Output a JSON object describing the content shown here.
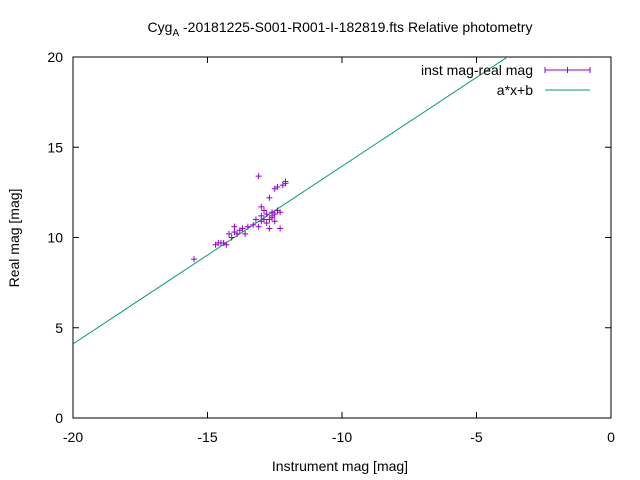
{
  "chart_data": {
    "type": "scatter",
    "title_main": "Cyg",
    "title_sub": "A",
    "title_rest": " -20181225-S001-R001-I-182819.fts Relative photometry",
    "xlabel": "Instrument mag [mag]",
    "ylabel": "Real mag [mag]",
    "xlim": [
      -20,
      0
    ],
    "ylim": [
      0,
      20
    ],
    "x_ticks": [
      -20,
      -15,
      -10,
      -5,
      0
    ],
    "y_ticks": [
      0,
      5,
      10,
      15,
      20
    ],
    "grid": false,
    "legend_position": "top-right",
    "series": [
      {
        "name": "inst mag-real mag",
        "kind": "points",
        "color": "#9400d3",
        "points": [
          [
            -15.5,
            8.8
          ],
          [
            -14.7,
            9.6
          ],
          [
            -14.6,
            9.7
          ],
          [
            -14.5,
            9.7
          ],
          [
            -14.4,
            9.7
          ],
          [
            -14.3,
            9.6
          ],
          [
            -14.2,
            10.2
          ],
          [
            -14.1,
            10.0
          ],
          [
            -14.0,
            10.3
          ],
          [
            -14.0,
            10.6
          ],
          [
            -13.9,
            10.2
          ],
          [
            -13.8,
            10.4
          ],
          [
            -13.7,
            10.5
          ],
          [
            -13.6,
            10.2
          ],
          [
            -13.5,
            10.6
          ],
          [
            -13.3,
            10.7
          ],
          [
            -13.2,
            11.0
          ],
          [
            -13.1,
            13.4
          ],
          [
            -13.1,
            10.6
          ],
          [
            -13.0,
            11.2
          ],
          [
            -13.0,
            11.7
          ],
          [
            -13.0,
            10.9
          ],
          [
            -12.9,
            11.0
          ],
          [
            -12.9,
            11.5
          ],
          [
            -12.8,
            10.8
          ],
          [
            -12.8,
            11.3
          ],
          [
            -12.7,
            11.0
          ],
          [
            -12.7,
            12.2
          ],
          [
            -12.7,
            10.5
          ],
          [
            -12.6,
            11.1
          ],
          [
            -12.6,
            11.4
          ],
          [
            -12.6,
            11.2
          ],
          [
            -12.5,
            11.3
          ],
          [
            -12.5,
            10.9
          ],
          [
            -12.5,
            12.7
          ],
          [
            -12.4,
            11.5
          ],
          [
            -12.4,
            12.8
          ],
          [
            -12.3,
            11.4
          ],
          [
            -12.3,
            10.5
          ],
          [
            -12.2,
            12.9
          ],
          [
            -12.1,
            13.0
          ],
          [
            -12.1,
            13.1
          ]
        ]
      },
      {
        "name": "a*x+b",
        "kind": "line",
        "color": "#009e73",
        "slope": 0.9843,
        "intercept": 23.79
      }
    ]
  }
}
